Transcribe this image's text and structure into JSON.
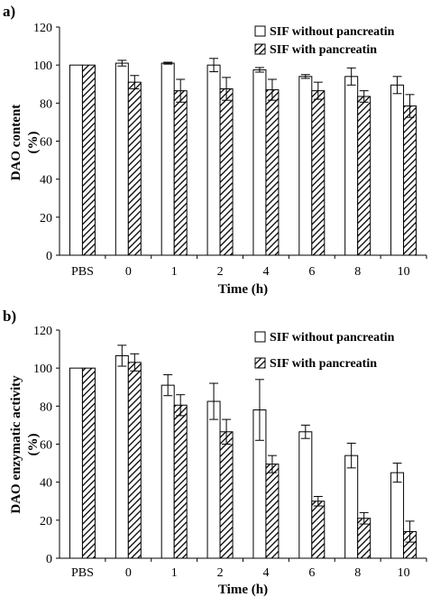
{
  "chart_data": [
    {
      "panel_label": "a)",
      "type": "bar",
      "categories": [
        "PBS",
        "0",
        "1",
        "2",
        "4",
        "6",
        "8",
        "10"
      ],
      "series": [
        {
          "name": "SIF without pancreatin",
          "pattern": "open",
          "values": [
            100,
            101,
            101,
            100,
            97.5,
            94,
            94,
            89.5
          ],
          "errors": [
            0,
            1.5,
            0.5,
            3.5,
            1.2,
            1,
            4.5,
            4.5
          ]
        },
        {
          "name": "SIF with pancreatin",
          "pattern": "hatched",
          "values": [
            100,
            91,
            86.5,
            87.5,
            87,
            86.5,
            83.5,
            78.5
          ],
          "errors": [
            0,
            3.5,
            6,
            6,
            5.5,
            4.5,
            3,
            6
          ]
        }
      ],
      "xlabel": "Time (h)",
      "ylabel_lines": [
        "DAO content",
        "(%)"
      ],
      "ylim": [
        0,
        120
      ],
      "yticks": [
        "0",
        "20",
        "40",
        "60",
        "80",
        "100",
        "120"
      ],
      "legend": "top-right",
      "grid": false
    },
    {
      "panel_label": "b)",
      "type": "bar",
      "categories": [
        "PBS",
        "0",
        "1",
        "2",
        "4",
        "6",
        "8",
        "10"
      ],
      "series": [
        {
          "name": "SIF without pancreatin",
          "pattern": "open",
          "values": [
            100,
            106.5,
            91,
            82.5,
            78,
            66.5,
            54,
            45
          ],
          "errors": [
            0,
            5.5,
            5.5,
            9.5,
            16,
            3.5,
            6.5,
            5
          ]
        },
        {
          "name": "SIF with pancreatin",
          "pattern": "hatched",
          "values": [
            100,
            103,
            80.5,
            66.5,
            49.5,
            30,
            21,
            14
          ],
          "errors": [
            0,
            4.5,
            5.5,
            6.5,
            4.5,
            2.5,
            3,
            5.5
          ]
        }
      ],
      "xlabel": "Time (h)",
      "ylabel_lines": [
        "DAO enzymatic activity",
        "(%)"
      ],
      "ylim": [
        0,
        120
      ],
      "yticks": [
        "0",
        "20",
        "40",
        "60",
        "80",
        "100",
        "120"
      ],
      "legend": "top-right",
      "grid": false
    }
  ]
}
